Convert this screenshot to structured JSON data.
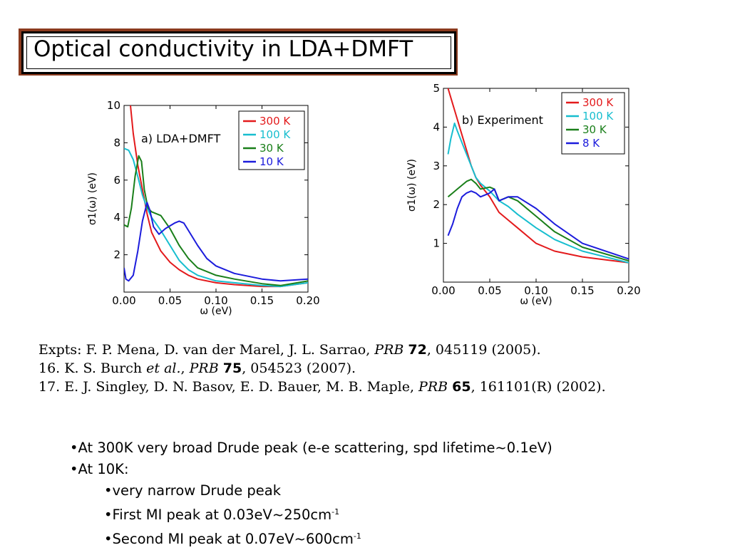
{
  "slide": {
    "title": "Optical conductivity in LDA+DMFT",
    "refs": [
      {
        "pre": "Expts:  F. P. Mena, D. van der Marel, J. L. Sarrao, ",
        "journal": "PRB",
        "vol": "72",
        "post": ", 045119 (2005)."
      },
      {
        "pre": "16. K. S. Burch ",
        "etal": "et al.",
        "sep": ", ",
        "journal": "PRB",
        "vol": "75",
        "post": ", 054523 (2007)."
      },
      {
        "pre": "17. E. J. Singley, D. N. Basov, E. D. Bauer, M. B. Maple, ",
        "journal": "PRB",
        "vol": "65",
        "post": ", 161101(R) (2002)."
      }
    ],
    "bullets": [
      {
        "text": "•At 300K very broad Drude peak (e-e scattering, spd lifetime~0.1eV)",
        "level": 0
      },
      {
        "text": "•At 10K:",
        "level": 0
      },
      {
        "text": "•very narrow Drude peak",
        "level": 1
      },
      {
        "text": "•First MI peak at 0.03eV~250cm",
        "sup": "-1",
        "level": 1
      },
      {
        "text": "•Second MI peak at 0.07eV~600cm",
        "sup": "-1",
        "level": 1
      }
    ]
  },
  "chart_data": [
    {
      "type": "line",
      "annotation": "a) LDA+DMFT",
      "xlabel": "ω (eV)",
      "ylabel": "σ1(ω) (eV)",
      "xlim": [
        0,
        0.2
      ],
      "ylim": [
        0,
        10
      ],
      "xticks": [
        "0.00",
        "0.05",
        "0.10",
        "0.15",
        "0.20"
      ],
      "yticks": [
        "2",
        "4",
        "6",
        "8",
        "10"
      ],
      "legend_position": "top-right",
      "series": [
        {
          "name": "300 K",
          "color": "#e31a1c",
          "points": [
            [
              0.007,
              10
            ],
            [
              0.01,
              8.5
            ],
            [
              0.015,
              6.8
            ],
            [
              0.02,
              5.5
            ],
            [
              0.025,
              4.2
            ],
            [
              0.03,
              3.2
            ],
            [
              0.04,
              2.2
            ],
            [
              0.05,
              1.6
            ],
            [
              0.06,
              1.2
            ],
            [
              0.07,
              0.9
            ],
            [
              0.08,
              0.7
            ],
            [
              0.1,
              0.5
            ],
            [
              0.12,
              0.4
            ],
            [
              0.15,
              0.3
            ],
            [
              0.17,
              0.3
            ],
            [
              0.2,
              0.5
            ]
          ]
        },
        {
          "name": "100 K",
          "color": "#17becf",
          "points": [
            [
              0,
              7.7
            ],
            [
              0.005,
              7.6
            ],
            [
              0.01,
              7.1
            ],
            [
              0.015,
              6.2
            ],
            [
              0.02,
              5.2
            ],
            [
              0.025,
              4.5
            ],
            [
              0.03,
              4.0
            ],
            [
              0.04,
              3.3
            ],
            [
              0.05,
              2.5
            ],
            [
              0.06,
              1.7
            ],
            [
              0.07,
              1.2
            ],
            [
              0.08,
              0.9
            ],
            [
              0.1,
              0.6
            ],
            [
              0.12,
              0.5
            ],
            [
              0.15,
              0.35
            ],
            [
              0.17,
              0.3
            ],
            [
              0.2,
              0.5
            ]
          ]
        },
        {
          "name": "30 K",
          "color": "#1a7f1a",
          "points": [
            [
              0,
              3.6
            ],
            [
              0.004,
              3.5
            ],
            [
              0.008,
              4.5
            ],
            [
              0.012,
              6.2
            ],
            [
              0.016,
              7.3
            ],
            [
              0.019,
              7.0
            ],
            [
              0.022,
              5.5
            ],
            [
              0.026,
              4.5
            ],
            [
              0.03,
              4.3
            ],
            [
              0.04,
              4.1
            ],
            [
              0.05,
              3.4
            ],
            [
              0.06,
              2.5
            ],
            [
              0.07,
              1.8
            ],
            [
              0.08,
              1.3
            ],
            [
              0.1,
              0.9
            ],
            [
              0.12,
              0.7
            ],
            [
              0.15,
              0.45
            ],
            [
              0.17,
              0.35
            ],
            [
              0.2,
              0.6
            ]
          ]
        },
        {
          "name": "10 K",
          "color": "#1c1cdc",
          "points": [
            [
              0,
              1.3
            ],
            [
              0.002,
              0.7
            ],
            [
              0.005,
              0.6
            ],
            [
              0.01,
              0.9
            ],
            [
              0.015,
              2.2
            ],
            [
              0.02,
              3.8
            ],
            [
              0.025,
              4.8
            ],
            [
              0.028,
              4.4
            ],
            [
              0.032,
              3.5
            ],
            [
              0.038,
              3.1
            ],
            [
              0.045,
              3.4
            ],
            [
              0.055,
              3.7
            ],
            [
              0.06,
              3.8
            ],
            [
              0.065,
              3.7
            ],
            [
              0.07,
              3.3
            ],
            [
              0.08,
              2.5
            ],
            [
              0.09,
              1.8
            ],
            [
              0.1,
              1.4
            ],
            [
              0.12,
              1.0
            ],
            [
              0.15,
              0.7
            ],
            [
              0.17,
              0.6
            ],
            [
              0.2,
              0.7
            ]
          ]
        }
      ]
    },
    {
      "type": "line",
      "annotation": "b) Experiment",
      "xlabel": "ω (eV)",
      "ylabel": "σ1(ω) (eV)",
      "xlim": [
        0,
        0.2
      ],
      "ylim": [
        0,
        5
      ],
      "xticks": [
        "0.00",
        "0.05",
        "0.10",
        "0.15",
        "0.20"
      ],
      "yticks": [
        "1",
        "2",
        "3",
        "4",
        "5"
      ],
      "legend_position": "top-right",
      "series": [
        {
          "name": "300 K",
          "color": "#e31a1c",
          "points": [
            [
              0.005,
              5.0
            ],
            [
              0.01,
              4.6
            ],
            [
              0.015,
              4.2
            ],
            [
              0.02,
              3.8
            ],
            [
              0.025,
              3.4
            ],
            [
              0.03,
              3.0
            ],
            [
              0.035,
              2.7
            ],
            [
              0.04,
              2.5
            ],
            [
              0.05,
              2.2
            ],
            [
              0.06,
              1.8
            ],
            [
              0.07,
              1.6
            ],
            [
              0.08,
              1.4
            ],
            [
              0.1,
              1.0
            ],
            [
              0.12,
              0.8
            ],
            [
              0.15,
              0.65
            ],
            [
              0.2,
              0.5
            ]
          ]
        },
        {
          "name": "100 K",
          "color": "#17becf",
          "points": [
            [
              0.005,
              3.3
            ],
            [
              0.008,
              3.7
            ],
            [
              0.012,
              4.1
            ],
            [
              0.015,
              3.9
            ],
            [
              0.02,
              3.6
            ],
            [
              0.025,
              3.3
            ],
            [
              0.03,
              3.0
            ],
            [
              0.035,
              2.7
            ],
            [
              0.04,
              2.55
            ],
            [
              0.05,
              2.35
            ],
            [
              0.06,
              2.1
            ],
            [
              0.07,
              1.95
            ],
            [
              0.08,
              1.75
            ],
            [
              0.1,
              1.4
            ],
            [
              0.12,
              1.1
            ],
            [
              0.15,
              0.8
            ],
            [
              0.2,
              0.5
            ]
          ]
        },
        {
          "name": "30 K",
          "color": "#1a7f1a",
          "points": [
            [
              0.005,
              2.2
            ],
            [
              0.01,
              2.3
            ],
            [
              0.015,
              2.4
            ],
            [
              0.02,
              2.5
            ],
            [
              0.025,
              2.6
            ],
            [
              0.03,
              2.65
            ],
            [
              0.035,
              2.55
            ],
            [
              0.04,
              2.4
            ],
            [
              0.05,
              2.45
            ],
            [
              0.055,
              2.4
            ],
            [
              0.06,
              2.1
            ],
            [
              0.07,
              2.2
            ],
            [
              0.08,
              2.1
            ],
            [
              0.1,
              1.7
            ],
            [
              0.12,
              1.3
            ],
            [
              0.15,
              0.9
            ],
            [
              0.2,
              0.55
            ]
          ]
        },
        {
          "name": "8 K",
          "color": "#1c1cdc",
          "points": [
            [
              0.005,
              1.2
            ],
            [
              0.01,
              1.5
            ],
            [
              0.015,
              1.9
            ],
            [
              0.02,
              2.2
            ],
            [
              0.025,
              2.3
            ],
            [
              0.03,
              2.35
            ],
            [
              0.035,
              2.3
            ],
            [
              0.04,
              2.2
            ],
            [
              0.05,
              2.3
            ],
            [
              0.055,
              2.4
            ],
            [
              0.06,
              2.1
            ],
            [
              0.07,
              2.2
            ],
            [
              0.08,
              2.2
            ],
            [
              0.1,
              1.9
            ],
            [
              0.12,
              1.5
            ],
            [
              0.15,
              1.0
            ],
            [
              0.2,
              0.6
            ]
          ]
        }
      ]
    }
  ]
}
